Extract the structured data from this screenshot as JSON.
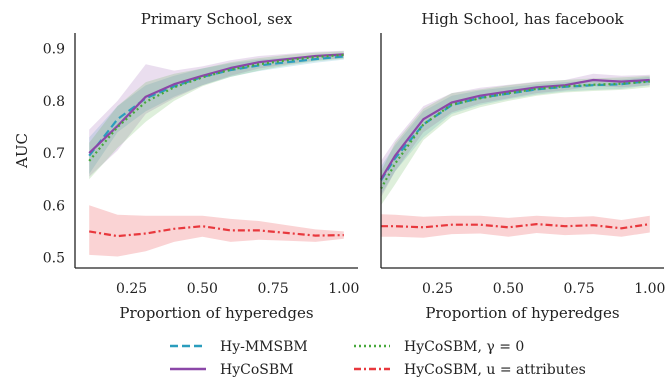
{
  "chart_data": [
    {
      "type": "line",
      "title": "Primary School, sex",
      "xlabel": "Proportion of hyperedges",
      "ylabel": "AUC",
      "xlim": [
        0.05,
        1.05
      ],
      "ylim": [
        0.48,
        0.93
      ],
      "xticks": [
        "0.25",
        "0.50",
        "0.75",
        "1.00"
      ],
      "yticks": [
        "0.5",
        "0.6",
        "0.7",
        "0.8",
        "0.9"
      ],
      "x": [
        0.1,
        0.2,
        0.3,
        0.4,
        0.5,
        0.6,
        0.7,
        0.8,
        0.9,
        1.0
      ],
      "series": [
        {
          "name": "Hy-MMSBM",
          "values": [
            0.695,
            0.765,
            0.805,
            0.828,
            0.846,
            0.859,
            0.868,
            0.874,
            0.88,
            0.885
          ],
          "band": [
            [
              0.66,
              0.73
            ],
            [
              0.74,
              0.79
            ],
            [
              0.78,
              0.83
            ],
            [
              0.808,
              0.848
            ],
            [
              0.83,
              0.862
            ],
            [
              0.846,
              0.872
            ],
            [
              0.857,
              0.879
            ],
            [
              0.865,
              0.883
            ],
            [
              0.873,
              0.887
            ],
            [
              0.879,
              0.891
            ]
          ]
        },
        {
          "name": "HyCoSBM",
          "values": [
            0.7,
            0.752,
            0.808,
            0.832,
            0.848,
            0.863,
            0.874,
            0.88,
            0.886,
            0.889
          ],
          "band": [
            [
              0.655,
              0.745
            ],
            [
              0.705,
              0.8
            ],
            [
              0.775,
              0.87
            ],
            [
              0.805,
              0.858
            ],
            [
              0.83,
              0.866
            ],
            [
              0.848,
              0.878
            ],
            [
              0.862,
              0.886
            ],
            [
              0.87,
              0.89
            ],
            [
              0.878,
              0.894
            ],
            [
              0.882,
              0.896
            ]
          ]
        },
        {
          "name": "HyCoSBM, γ = 0",
          "values": [
            0.685,
            0.75,
            0.798,
            0.826,
            0.845,
            0.86,
            0.87,
            0.878,
            0.884,
            0.888
          ],
          "band": [
            [
              0.65,
              0.72
            ],
            [
              0.71,
              0.79
            ],
            [
              0.76,
              0.836
            ],
            [
              0.8,
              0.852
            ],
            [
              0.828,
              0.862
            ],
            [
              0.846,
              0.874
            ],
            [
              0.858,
              0.882
            ],
            [
              0.868,
              0.888
            ],
            [
              0.876,
              0.892
            ],
            [
              0.881,
              0.895
            ]
          ]
        },
        {
          "name": "HyCoSBM, u = attributes",
          "values": [
            0.55,
            0.541,
            0.546,
            0.555,
            0.56,
            0.552,
            0.552,
            0.547,
            0.542,
            0.543
          ],
          "band": [
            [
              0.505,
              0.6
            ],
            [
              0.502,
              0.582
            ],
            [
              0.512,
              0.58
            ],
            [
              0.53,
              0.58
            ],
            [
              0.54,
              0.58
            ],
            [
              0.53,
              0.574
            ],
            [
              0.534,
              0.57
            ],
            [
              0.532,
              0.562
            ],
            [
              0.53,
              0.554
            ],
            [
              0.536,
              0.55
            ]
          ]
        }
      ]
    },
    {
      "type": "line",
      "title": "High School, has facebook",
      "xlabel": "Proportion of hyperedges",
      "ylabel": "",
      "xlim": [
        0.05,
        1.05
      ],
      "ylim": [
        0.48,
        0.93
      ],
      "xticks": [
        "0.25",
        "0.50",
        "0.75",
        "1.00"
      ],
      "x": [
        0.05,
        0.1,
        0.2,
        0.3,
        0.4,
        0.5,
        0.6,
        0.7,
        0.8,
        0.9,
        1.0
      ],
      "series": [
        {
          "name": "Hy-MMSBM",
          "values": [
            0.648,
            0.69,
            0.755,
            0.792,
            0.806,
            0.814,
            0.822,
            0.827,
            0.83,
            0.832,
            0.838
          ],
          "band": [
            [
              0.62,
              0.675
            ],
            [
              0.665,
              0.715
            ],
            [
              0.73,
              0.78
            ],
            [
              0.775,
              0.81
            ],
            [
              0.792,
              0.82
            ],
            [
              0.803,
              0.826
            ],
            [
              0.812,
              0.832
            ],
            [
              0.818,
              0.836
            ],
            [
              0.821,
              0.839
            ],
            [
              0.823,
              0.841
            ],
            [
              0.83,
              0.846
            ]
          ]
        },
        {
          "name": "HyCoSBM",
          "values": [
            0.65,
            0.695,
            0.765,
            0.797,
            0.81,
            0.818,
            0.826,
            0.83,
            0.84,
            0.837,
            0.84
          ],
          "band": [
            [
              0.615,
              0.685
            ],
            [
              0.665,
              0.725
            ],
            [
              0.74,
              0.79
            ],
            [
              0.778,
              0.815
            ],
            [
              0.795,
              0.825
            ],
            [
              0.805,
              0.831
            ],
            [
              0.815,
              0.837
            ],
            [
              0.82,
              0.84
            ],
            [
              0.828,
              0.852
            ],
            [
              0.826,
              0.848
            ],
            [
              0.83,
              0.85
            ]
          ]
        },
        {
          "name": "HyCoSBM, γ = 0",
          "values": [
            0.632,
            0.68,
            0.755,
            0.793,
            0.805,
            0.815,
            0.823,
            0.828,
            0.831,
            0.833,
            0.837
          ],
          "band": [
            [
              0.6,
              0.665
            ],
            [
              0.64,
              0.72
            ],
            [
              0.725,
              0.785
            ],
            [
              0.77,
              0.815
            ],
            [
              0.788,
              0.822
            ],
            [
              0.8,
              0.83
            ],
            [
              0.81,
              0.836
            ],
            [
              0.816,
              0.84
            ],
            [
              0.819,
              0.843
            ],
            [
              0.821,
              0.845
            ],
            [
              0.826,
              0.848
            ]
          ]
        },
        {
          "name": "HyCoSBM, u = attributes",
          "values": [
            0.56,
            0.56,
            0.558,
            0.563,
            0.563,
            0.558,
            0.564,
            0.56,
            0.562,
            0.556,
            0.564
          ],
          "band": [
            [
              0.54,
              0.583
            ],
            [
              0.54,
              0.582
            ],
            [
              0.538,
              0.578
            ],
            [
              0.545,
              0.58
            ],
            [
              0.546,
              0.58
            ],
            [
              0.54,
              0.576
            ],
            [
              0.547,
              0.58
            ],
            [
              0.543,
              0.577
            ],
            [
              0.545,
              0.579
            ],
            [
              0.54,
              0.572
            ],
            [
              0.548,
              0.58
            ]
          ]
        }
      ]
    }
  ],
  "legend": [
    {
      "label": "Hy-MMSBM",
      "color": "#2a9dbd",
      "dash": "dashed"
    },
    {
      "label": "HyCoSBM",
      "color": "#8b47a8",
      "dash": "solid"
    },
    {
      "label": "HyCoSBM, γ = 0",
      "color": "#47a83a",
      "dash": "dotted"
    },
    {
      "label": "HyCoSBM, u = attributes",
      "color": "#e8383d",
      "dash": "dashdot"
    }
  ],
  "colors": {
    "Hy-MMSBM": "#2a9dbd",
    "HyCoSBM": "#8b47a8",
    "HyCoSBM, γ = 0": "#47a83a",
    "HyCoSBM, u = attributes": "#e8383d"
  }
}
